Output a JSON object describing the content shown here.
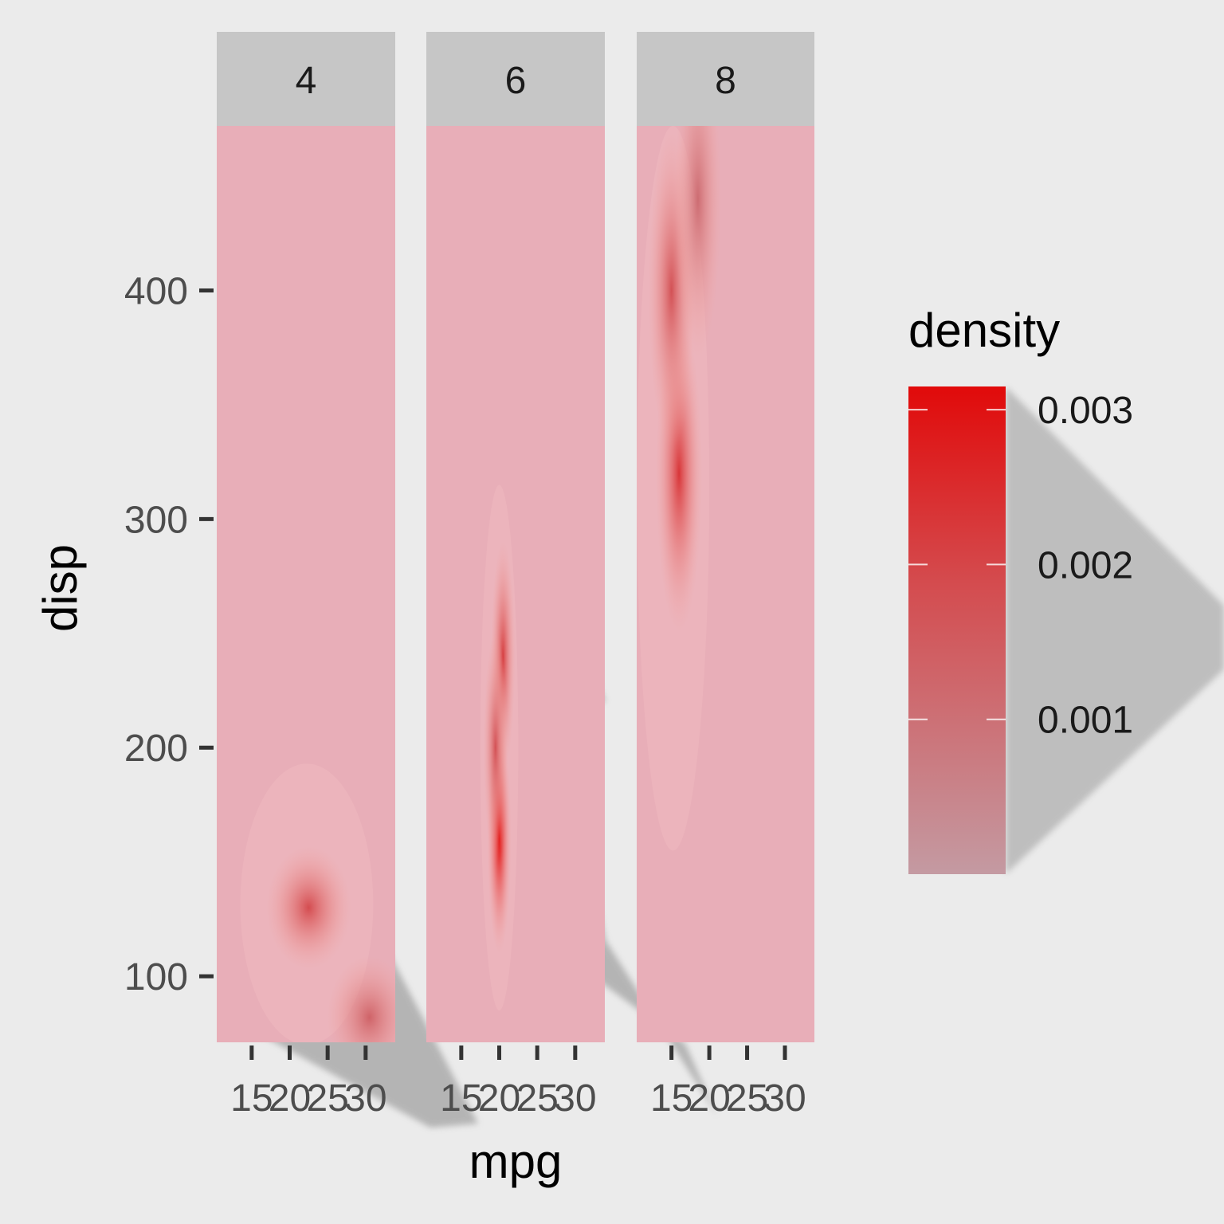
{
  "chart_data": {
    "type": "heatmap",
    "title": "",
    "xlabel": "mpg",
    "ylabel": "disp",
    "x_ticks": [
      15,
      20,
      25,
      30
    ],
    "x_tick_labels": [
      "15",
      "20",
      "25",
      "30"
    ],
    "y_ticks": [
      100,
      200,
      300,
      400
    ],
    "y_tick_labels": [
      "100",
      "200",
      "300",
      "400"
    ],
    "xlim": [
      10.4,
      33.9
    ],
    "ylim": [
      71.1,
      472
    ],
    "facets": [
      {
        "label": "4",
        "density_peaks": [
          {
            "mpg": 22.5,
            "disp": 130,
            "density": 0.0017
          },
          {
            "mpg": 30.5,
            "disp": 82,
            "density": 0.0012
          }
        ],
        "region": {
          "mpg": [
            13.5,
            31.0
          ],
          "disp": [
            70,
            193
          ]
        }
      },
      {
        "label": "6",
        "density_peaks": [
          {
            "mpg": 20.0,
            "disp": 160,
            "density": 0.0032
          },
          {
            "mpg": 20.5,
            "disp": 240,
            "density": 0.002
          },
          {
            "mpg": 19.5,
            "disp": 200,
            "density": 0.0016
          }
        ],
        "region": {
          "mpg": [
            17.5,
            22.5
          ],
          "disp": [
            85,
            315
          ]
        }
      },
      {
        "label": "8",
        "density_peaks": [
          {
            "mpg": 16.0,
            "disp": 320,
            "density": 0.0022
          },
          {
            "mpg": 15.0,
            "disp": 400,
            "density": 0.0016
          },
          {
            "mpg": 18.5,
            "disp": 440,
            "density": 0.001
          }
        ],
        "region": {
          "mpg": [
            10.4,
            20.0
          ],
          "disp": [
            155,
            472
          ]
        }
      }
    ],
    "legend": {
      "title": "density",
      "breaks": [
        0.003,
        0.002,
        0.001
      ],
      "break_labels": [
        "0.003",
        "0.002",
        "0.001"
      ],
      "range": [
        0.0,
        0.00315
      ],
      "position": "right",
      "colors": {
        "low": "#c49aa2",
        "high": "#e10a0a"
      }
    }
  },
  "colors": {
    "panel": "#e8aeb8",
    "strip": "#c6c6c6",
    "background": "#ebebeb",
    "shadow": "#888888",
    "text": "#4d4d4d"
  }
}
